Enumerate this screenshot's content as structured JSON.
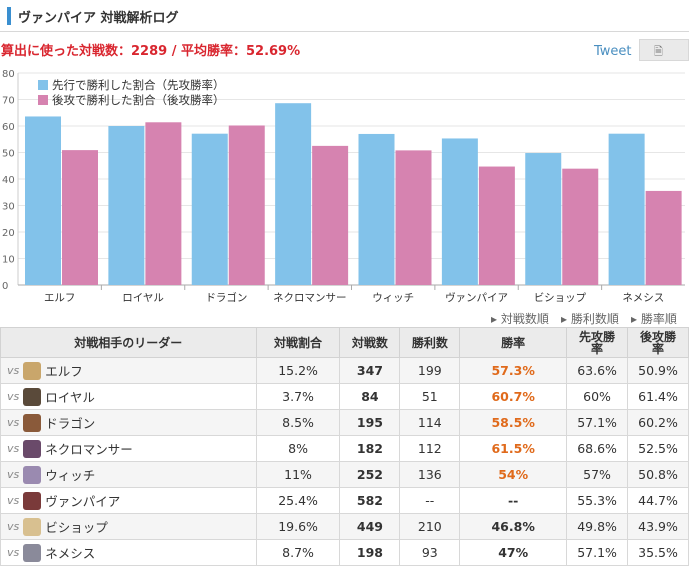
{
  "header": {
    "title": "ヴァンパイア 対戦解析ログ"
  },
  "summary": "算出に使った対戦数：2289 / 平均勝率：52.69%",
  "share": {
    "tweet_label": "Tweet",
    "icon": "page-icon"
  },
  "colors": {
    "first": "#82c2ea",
    "second": "#d683b0",
    "accent": "#e06a1b"
  },
  "chart_data": {
    "type": "bar",
    "categories": [
      "エルフ",
      "ロイヤル",
      "ドラゴン",
      "ネクロマンサー",
      "ウィッチ",
      "ヴァンパイア",
      "ビショップ",
      "ネメシス"
    ],
    "series": [
      {
        "name": "先行で勝利した割合（先攻勝率）",
        "values": [
          63.6,
          60,
          57.1,
          68.6,
          57,
          55.3,
          49.8,
          57.1
        ]
      },
      {
        "name": "後攻で勝利した割合（後攻勝率）",
        "values": [
          50.9,
          61.4,
          60.2,
          52.5,
          50.8,
          44.7,
          43.9,
          35.5
        ]
      }
    ],
    "yticks": [
      0,
      10,
      20,
      30,
      40,
      50,
      60,
      70,
      80
    ],
    "ylim": [
      0,
      80
    ],
    "legend": "top-left"
  },
  "sort_links": [
    "対戦数順",
    "勝利数順",
    "勝率順"
  ],
  "table": {
    "headers": {
      "leader": "対戦相手のリーダー",
      "share": "対戦割合",
      "matches": "対戦数",
      "wins": "勝利数",
      "winrate": "勝率",
      "first": "先攻勝\n率",
      "second": "後攻勝\n率"
    },
    "vs_label": "vs",
    "rows": [
      {
        "leader": "エルフ",
        "share": "15.2%",
        "matches": "347",
        "wins": "199",
        "winrate": "57.3%",
        "first": "63.6%",
        "second": "50.9%",
        "color": "#c9a66b"
      },
      {
        "leader": "ロイヤル",
        "share": "3.7%",
        "matches": "84",
        "wins": "51",
        "winrate": "60.7%",
        "first": "60%",
        "second": "61.4%",
        "color": "#5a4a3a"
      },
      {
        "leader": "ドラゴン",
        "share": "8.5%",
        "matches": "195",
        "wins": "114",
        "winrate": "58.5%",
        "first": "57.1%",
        "second": "60.2%",
        "color": "#8a5a3a"
      },
      {
        "leader": "ネクロマンサー",
        "share": "8%",
        "matches": "182",
        "wins": "112",
        "winrate": "61.5%",
        "first": "68.6%",
        "second": "52.5%",
        "color": "#6a4a6a"
      },
      {
        "leader": "ウィッチ",
        "share": "11%",
        "matches": "252",
        "wins": "136",
        "winrate": "54%",
        "first": "57%",
        "second": "50.8%",
        "color": "#9a8ab0"
      },
      {
        "leader": "ヴァンパイア",
        "share": "25.4%",
        "matches": "582",
        "wins": "--",
        "winrate": "--",
        "first": "55.3%",
        "second": "44.7%",
        "color": "#7a3a3a"
      },
      {
        "leader": "ビショップ",
        "share": "19.6%",
        "matches": "449",
        "wins": "210",
        "winrate": "46.8%",
        "first": "49.8%",
        "second": "43.9%",
        "color": "#d8c090"
      },
      {
        "leader": "ネメシス",
        "share": "8.7%",
        "matches": "198",
        "wins": "93",
        "winrate": "47%",
        "first": "57.1%",
        "second": "35.5%",
        "color": "#8a8a9a"
      }
    ]
  }
}
